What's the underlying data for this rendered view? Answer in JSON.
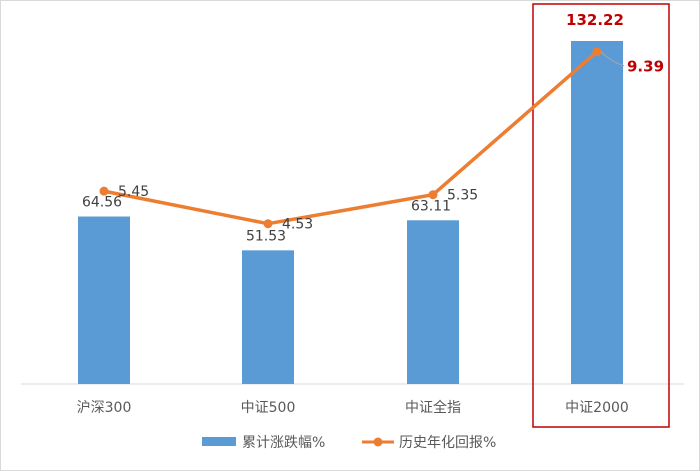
{
  "chart_data": {
    "type": "bar",
    "categories": [
      "沪深300",
      "中证500",
      "中证全指",
      "中证2000"
    ],
    "series": [
      {
        "name": "累计涨跌幅%",
        "type": "bar",
        "color": "#5b9bd5",
        "values": [
          64.56,
          51.53,
          63.11,
          132.22
        ]
      },
      {
        "name": "历史年化回报%",
        "type": "line",
        "color": "#ed7d31",
        "values": [
          5.45,
          4.53,
          5.35,
          9.39
        ]
      }
    ],
    "highlight": {
      "category": "中证2000",
      "color": "#c00000"
    },
    "bar_labels": [
      "64.56",
      "51.53",
      "63.11",
      "132.22"
    ],
    "line_labels": [
      "5.45",
      "4.53",
      "5.35",
      "9.39"
    ],
    "ylim_bar": [
      0,
      140
    ],
    "ylim_line": [
      0,
      9.75
    ],
    "grid": false,
    "legend_position": "bottom"
  }
}
